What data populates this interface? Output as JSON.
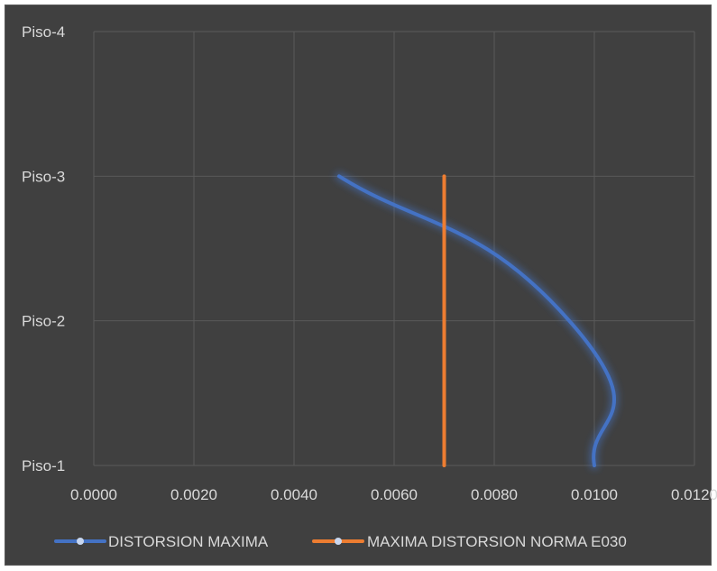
{
  "chart_data": {
    "type": "line",
    "title": "",
    "xlabel": "",
    "ylabel": "",
    "xlim": [
      0,
      0.012
    ],
    "x_ticks": [
      "0.0000",
      "0.0020",
      "0.0040",
      "0.0060",
      "0.0080",
      "0.0100",
      "0.0120"
    ],
    "categories": [
      "Piso-1",
      "Piso-2",
      "Piso-3",
      "Piso-4"
    ],
    "grid": true,
    "legend": "bottom",
    "series": [
      {
        "name": "DISTORSION MAXIMA",
        "color": "#4472c4",
        "smooth": true,
        "points": [
          {
            "x": 0.01,
            "y": "Piso-1"
          },
          {
            "x": 0.0095,
            "y": "Piso-2"
          },
          {
            "x": 0.0049,
            "y": "Piso-3"
          }
        ]
      },
      {
        "name": "MAXIMA DISTORSION NORMA E030",
        "color": "#ed7d31",
        "smooth": false,
        "points": [
          {
            "x": 0.007,
            "y": "Piso-1"
          },
          {
            "x": 0.007,
            "y": "Piso-2"
          },
          {
            "x": 0.007,
            "y": "Piso-3"
          }
        ]
      }
    ]
  }
}
